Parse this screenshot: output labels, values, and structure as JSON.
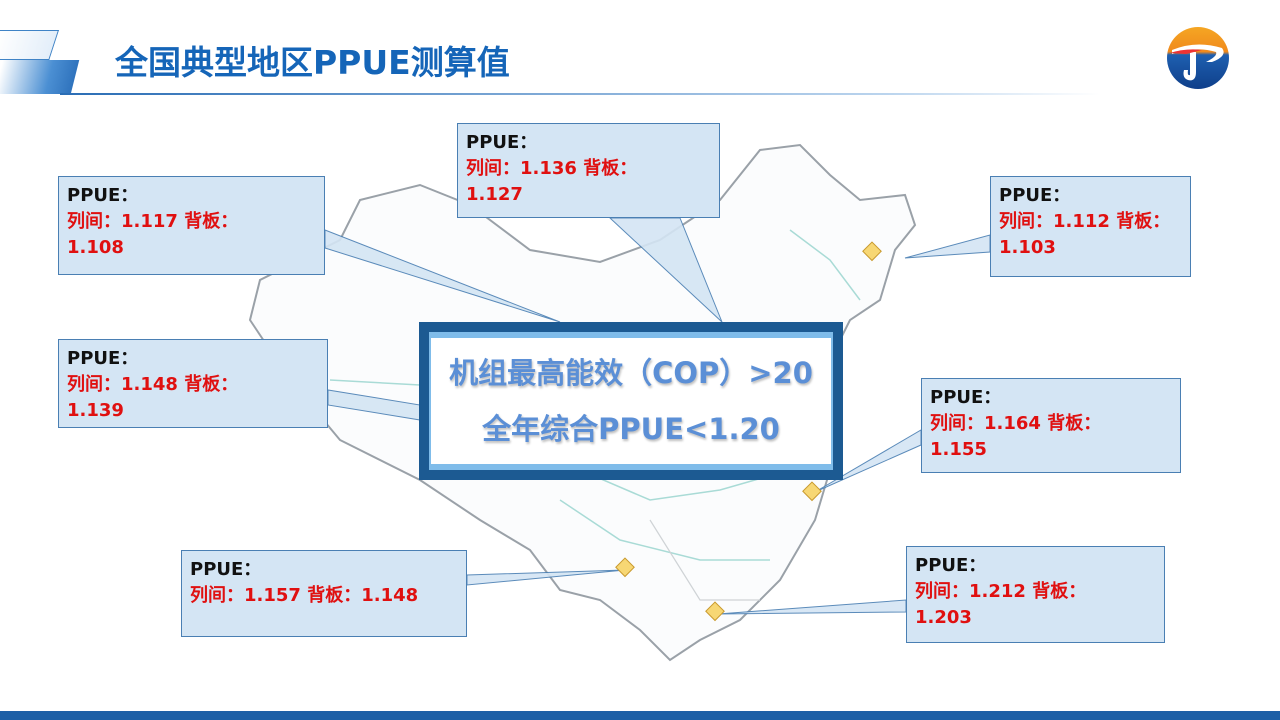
{
  "header": {
    "title": "全国典型地区PPUE测算值"
  },
  "center_box": {
    "line1": "机组最高能效（COP）>20",
    "line2": "全年综合PPUE<1.20"
  },
  "callouts": [
    {
      "label": "PPUE：",
      "row": "列间：1.117  背板：",
      "cont": "1.108"
    },
    {
      "label": "PPUE：",
      "row": "列间：1.136  背板：",
      "cont": "1.127"
    },
    {
      "label": "PPUE：",
      "row": "列间：1.112  背板：",
      "cont": "1.103"
    },
    {
      "label": "PPUE：",
      "row": "列间：1.148  背板：",
      "cont": "1.139"
    },
    {
      "label": "PPUE：",
      "row": "列间：1.164  背板：",
      "cont": "1.155"
    },
    {
      "label": "PPUE：",
      "row": "列间：1.157 背板：1.148",
      "cont": ""
    },
    {
      "label": "PPUE：",
      "row": "列间：1.212  背板：",
      "cont": "1.203"
    }
  ],
  "colors": {
    "title": "#1565b8",
    "value_text": "#e01010",
    "callout_fill": "#d4e5f4",
    "marker": "#f7d774",
    "bottom_bar": "#1d5fa6"
  },
  "icons": {
    "logo": "company-logo",
    "marker": "diamond-marker"
  }
}
